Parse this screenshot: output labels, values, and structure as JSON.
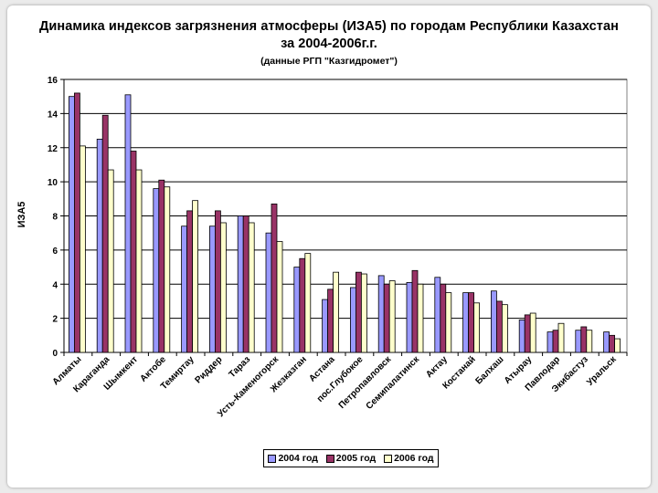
{
  "chart_data": {
    "type": "bar",
    "title": "Динамика индексов загрязнения атмосферы (ИЗА5) по городам Республики Казахстан",
    "title_line2": "за 2004-2006г.г.",
    "subtitle": "(данные РГП \"Казгидромет\")",
    "ylabel": "ИЗА5",
    "xlabel": "",
    "ylim": [
      0,
      16
    ],
    "yticks": [
      "0",
      "2",
      "4",
      "6",
      "8",
      "10",
      "12",
      "14",
      "16"
    ],
    "grid": true,
    "legend_position": "bottom",
    "categories": [
      "Алматы",
      "Караганда",
      "Шымкент",
      "Актобе",
      "Темиртау",
      "Риддер",
      "Тараз",
      "Усть-Каменогорск",
      "Жезказган",
      "Астана",
      "пос.Глубокое",
      "Петропавловск",
      "Семипалатинск",
      "Актау",
      "Костанай",
      "Балхаш",
      "Атырау",
      "Павлодар",
      "Экибастуз",
      "Уральск"
    ],
    "series": [
      {
        "name": "2004 год",
        "color": "#9999ff",
        "values": [
          15.0,
          12.5,
          15.1,
          9.6,
          7.4,
          7.4,
          8.0,
          7.0,
          5.0,
          3.1,
          3.8,
          4.5,
          4.1,
          4.4,
          3.5,
          3.6,
          1.9,
          1.2,
          1.3,
          1.2
        ]
      },
      {
        "name": "2005 год",
        "color": "#993366",
        "values": [
          15.2,
          13.9,
          11.8,
          10.1,
          8.3,
          8.3,
          8.0,
          8.7,
          5.5,
          3.7,
          4.7,
          4.0,
          4.8,
          4.0,
          3.5,
          3.0,
          2.2,
          1.3,
          1.5,
          1.0
        ]
      },
      {
        "name": "2006 год",
        "color": "#ffffcc",
        "values": [
          12.1,
          10.7,
          10.7,
          9.7,
          8.9,
          7.6,
          7.6,
          6.5,
          5.8,
          4.7,
          4.6,
          4.2,
          4.0,
          3.5,
          2.9,
          2.8,
          2.3,
          1.7,
          1.3,
          0.8
        ]
      }
    ]
  }
}
